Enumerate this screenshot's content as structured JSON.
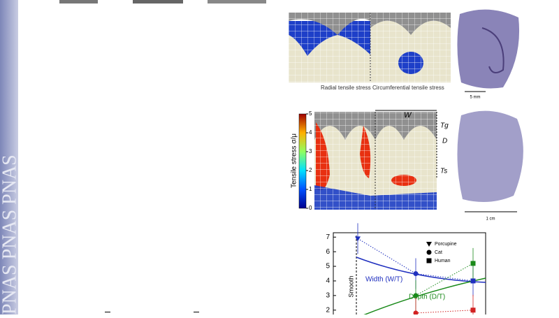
{
  "watermark": "PNAS PNAS PNAS",
  "figure_top": {
    "caption_left": "Radial tensile stress",
    "caption_right": "Circumferential tensile stress",
    "scale_label": "5 mm"
  },
  "figure_middle": {
    "colorbar_label": "Tensile stress σ/μ",
    "colorbar_ticks": [
      0,
      1,
      2,
      3,
      4,
      5
    ],
    "colorbar_lim": [
      0,
      5
    ],
    "dim_w": "W",
    "dim_tg": "Tg",
    "dim_d": "D",
    "dim_ts": "Ts",
    "scale_label": "1 cm"
  },
  "plot": {
    "categories": [
      "Porcupine",
      "Cat",
      "Human"
    ],
    "ylim": [
      1.7,
      7.3
    ],
    "yticks": [
      2,
      3,
      4,
      5,
      6,
      7
    ],
    "region_label": "Smooth",
    "series": [
      {
        "name": "Width (W/T)",
        "color": "#1f2fbf",
        "values": [
          6.9,
          4.5,
          4.0
        ]
      },
      {
        "name": "Depth (D/T)",
        "color": "#1a8a1a",
        "values": [
          null,
          3.0,
          5.2
        ]
      },
      {
        "color": "#d22222",
        "values": [
          null,
          1.8,
          2.0
        ]
      }
    ]
  }
}
